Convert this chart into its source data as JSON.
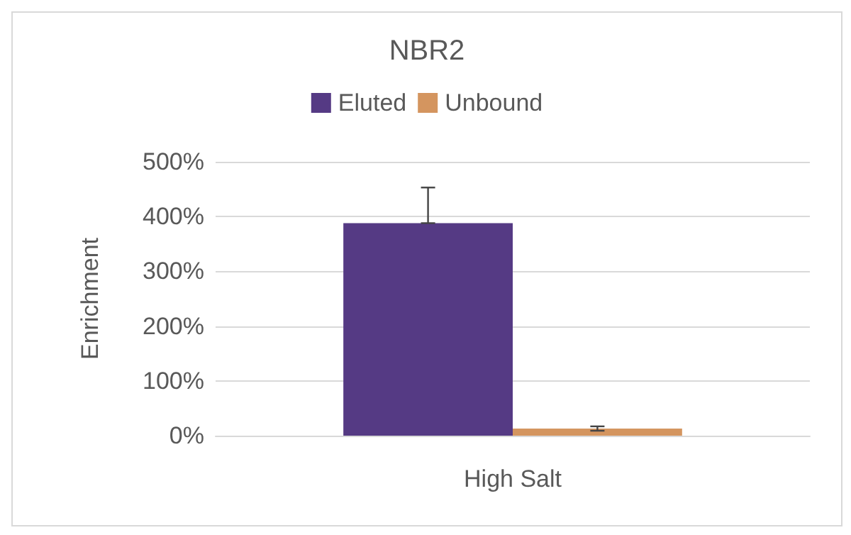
{
  "chart_data": {
    "type": "bar",
    "title": "NBR2",
    "ylabel": "Enrichment",
    "categories": [
      "High Salt"
    ],
    "series": [
      {
        "name": "Eluted",
        "color": "#553a84",
        "values": [
          388
        ],
        "errors": [
          [
            388,
            453
          ]
        ]
      },
      {
        "name": "Unbound",
        "color": "#d4955f",
        "values": [
          13
        ],
        "errors": [
          4
        ]
      }
    ],
    "ylim": [
      0,
      500
    ],
    "yticks": [
      {
        "value": 0,
        "label": "0%"
      },
      {
        "value": 100,
        "label": "100%"
      },
      {
        "value": 200,
        "label": "200%"
      },
      {
        "value": 300,
        "label": "300%"
      },
      {
        "value": 400,
        "label": "400%"
      },
      {
        "value": 500,
        "label": "500%"
      }
    ],
    "grid": "y",
    "legend": "top"
  }
}
